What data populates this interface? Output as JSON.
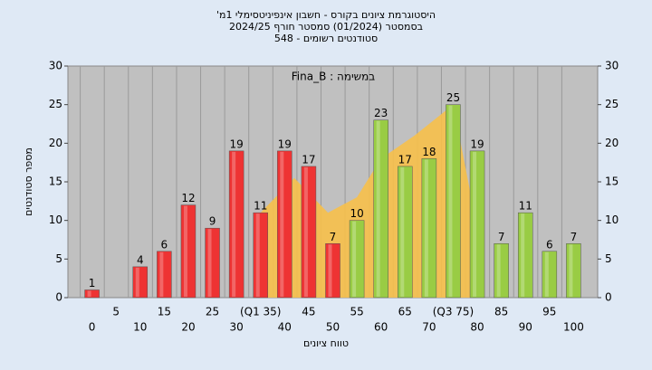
{
  "chart_data": {
    "type": "bar",
    "title": "היסטוגרמת ציונים בקורס - חשבון אינפיניטסימלי 1מ'",
    "subtitle": "בסמסטר  (01/2024)  סמסטר חורף 2024/25",
    "subtitle2": "סטודנטים רשומים - 548",
    "annotation": "במשימה : Fina_B",
    "x_label": "טווח ציונים",
    "y_label": "מספר סטודנטים",
    "categories": [
      "0",
      "5",
      "10",
      "15",
      "20",
      "25",
      "30",
      "(Q1 35)",
      "40",
      "45",
      "50",
      "55",
      "60",
      "65",
      "70",
      "(Q3 75)",
      "80",
      "85",
      "90",
      "95",
      "100"
    ],
    "x": [
      0,
      5,
      10,
      15,
      20,
      25,
      30,
      35,
      40,
      45,
      50,
      55,
      60,
      65,
      70,
      75,
      80,
      85,
      90,
      95,
      100
    ],
    "values": [
      1,
      null,
      4,
      6,
      12,
      9,
      19,
      11,
      19,
      17,
      7,
      10,
      23,
      17,
      18,
      25,
      19,
      7,
      11,
      6,
      7
    ],
    "colors": [
      "#e33",
      "#e33",
      "#e33",
      "#e33",
      "#e33",
      "#e33",
      "#e33",
      "#e33",
      "#e33",
      "#e33",
      "#e33",
      "#9c4",
      "#9c4",
      "#9c4",
      "#9c4",
      "#9c4",
      "#9c4",
      "#9c4",
      "#9c4",
      "#9c4",
      "#9c4"
    ],
    "area": {
      "color": "#f7c04a",
      "x": [
        35,
        42,
        49,
        55,
        60,
        67,
        75,
        80
      ],
      "values": [
        11,
        15.5,
        11,
        13,
        18,
        21,
        25,
        9
      ]
    },
    "xlim": [
      -5,
      105
    ],
    "ylim": [
      0,
      30
    ],
    "yticks": [
      0,
      5,
      10,
      15,
      20,
      25,
      30
    ],
    "grid": true
  }
}
